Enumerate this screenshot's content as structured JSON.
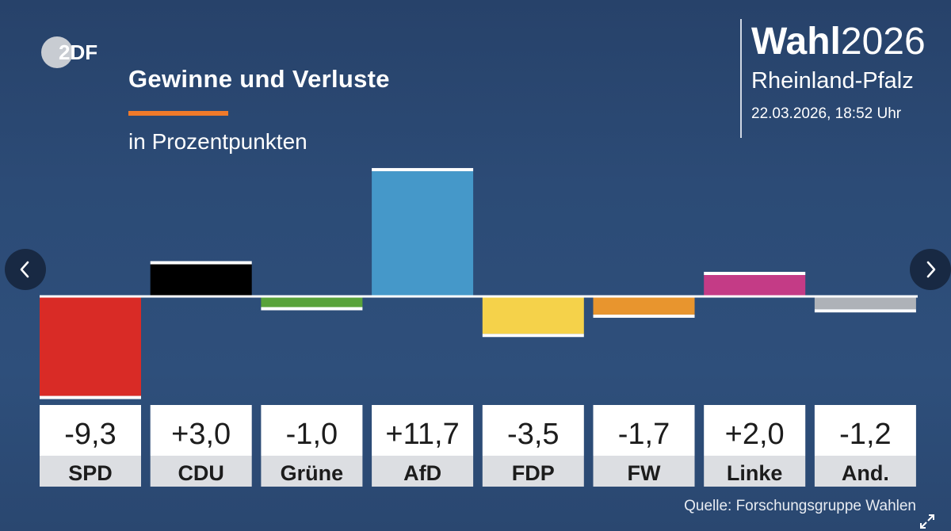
{
  "header": {
    "title": "Gewinne und Verluste",
    "subtitle": "in Prozentpunkten"
  },
  "brand": {
    "logo_text": "2DF",
    "wahl_bold": "Wahl",
    "wahl_year": "2026",
    "region": "Rheinland-Pfalz",
    "date": "22.03.2026, 18:52 Uhr"
  },
  "footer": {
    "source": "Quelle: Forschungsgruppe Wahlen"
  },
  "colors": {
    "accent": "#f07a2a"
  },
  "chart_data": {
    "type": "bar",
    "title": "Gewinne und Verluste",
    "subtitle": "in Prozentpunkten",
    "ylabel": "Prozentpunkte",
    "ylim": [
      -9.3,
      11.7
    ],
    "categories": [
      "SPD",
      "CDU",
      "Grüne",
      "AfD",
      "FDP",
      "FW",
      "Linke",
      "And."
    ],
    "values": [
      -9.3,
      3.0,
      -1.0,
      11.7,
      -3.5,
      -1.7,
      2.0,
      -1.2
    ],
    "labels": [
      "-9,3",
      "+3,0",
      "-1,0",
      "+11,7",
      "-3,5",
      "-1,7",
      "+2,0",
      "-1,2"
    ],
    "colors": [
      "#d92b26",
      "#000000",
      "#59a33a",
      "#4598c9",
      "#f5d24a",
      "#e8952e",
      "#c43b86",
      "#aeb2b8"
    ]
  }
}
